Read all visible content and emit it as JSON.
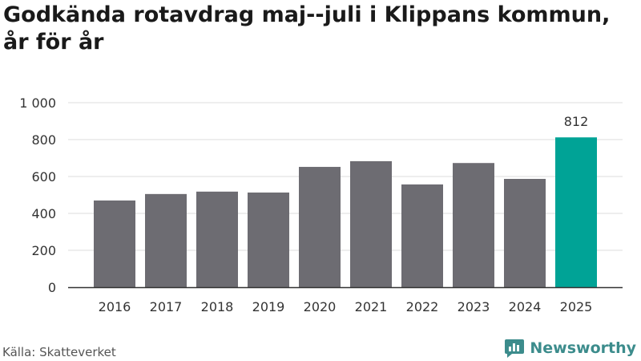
{
  "title": "Godkända rotavdrag maj--juli i Klippans kommun, år för år",
  "source": "Källa: Skatteverket",
  "brand": {
    "name": "Newsworthy",
    "icon": "newsworthy-logo-icon",
    "color": "#3c8c8c"
  },
  "colors": {
    "bar": "#6d6c72",
    "highlight": "#00a396",
    "grid": "#dddddd",
    "axis": "#333333",
    "text": "#333333"
  },
  "chart_data": {
    "type": "bar",
    "categories": [
      "2016",
      "2017",
      "2018",
      "2019",
      "2020",
      "2021",
      "2022",
      "2023",
      "2024",
      "2025"
    ],
    "values": [
      470,
      505,
      518,
      513,
      652,
      683,
      557,
      673,
      587,
      812
    ],
    "highlight_index": 9,
    "data_labels": {
      "9": "812"
    },
    "yticks": [
      0,
      200,
      400,
      600,
      800,
      1000
    ],
    "ytick_labels": [
      "0",
      "200",
      "400",
      "600",
      "800",
      "1 000"
    ],
    "ylim": [
      0,
      1000
    ],
    "grid": true
  }
}
